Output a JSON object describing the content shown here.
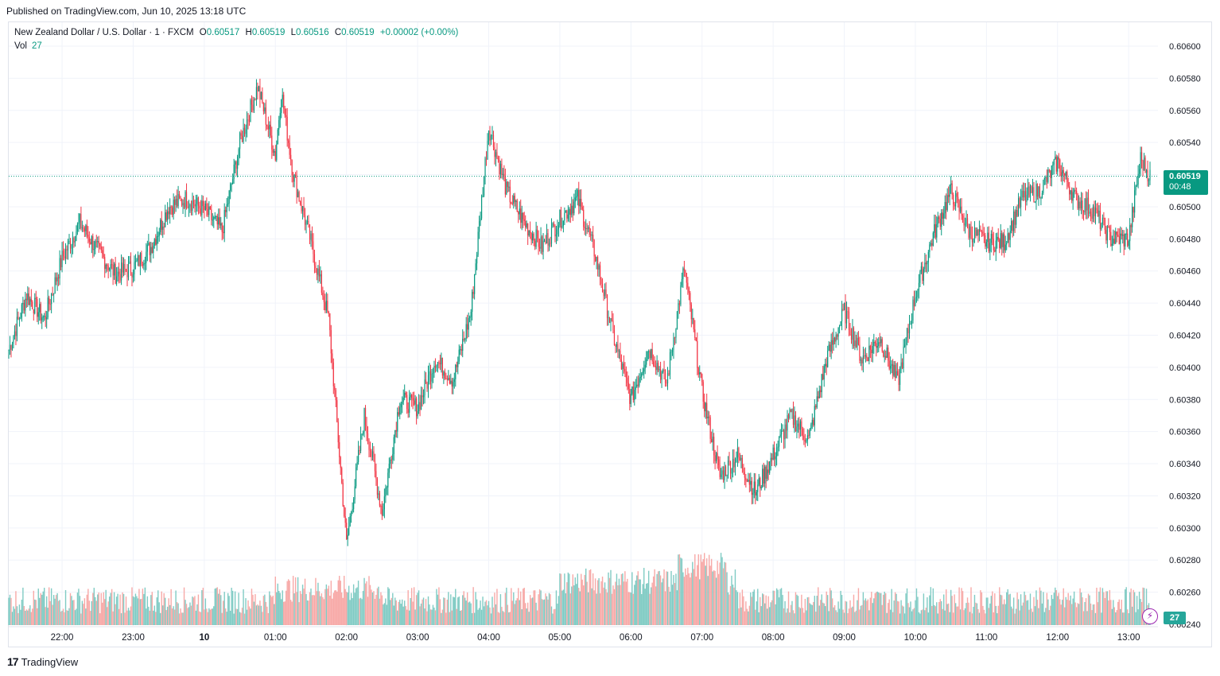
{
  "header": {
    "published": "Published on TradingView.com, Jun 10, 2025 13:18 UTC"
  },
  "legend": {
    "symbol": "New Zealand Dollar / U.S. Dollar · 1 · FXCM",
    "o_label": "O",
    "o_value": "0.60517",
    "h_label": "H",
    "h_value": "0.60519",
    "l_label": "L",
    "l_value": "0.60516",
    "c_label": "C",
    "c_value": "0.60519",
    "change": "+0.00002 (+0.00%)",
    "vol_label": "Vol",
    "vol_value": "27"
  },
  "price_tag": {
    "price": "0.60519",
    "countdown": "00:48"
  },
  "volume_tag": "27",
  "footer": {
    "brand": "TradingView",
    "logo_text": "17"
  },
  "colors": {
    "up": "#089981",
    "down": "#f23645",
    "up_volume": "#80cbc4",
    "down_volume": "#f7a9a7",
    "grid": "#f0f3fa"
  },
  "chart_data": {
    "type": "candlestick",
    "symbol": "NZD/USD",
    "interval": "1",
    "ylim": [
      0.6024,
      0.606
    ],
    "y_ticks": [
      "0.60600",
      "0.60580",
      "0.60560",
      "0.60540",
      "0.60520",
      "0.60500",
      "0.60480",
      "0.60460",
      "0.60440",
      "0.60420",
      "0.60400",
      "0.60380",
      "0.60360",
      "0.60340",
      "0.60320",
      "0.60300",
      "0.60280",
      "0.60260",
      "0.60240"
    ],
    "x_ticks": [
      "22:00",
      "23:00",
      "10",
      "01:00",
      "02:00",
      "03:00",
      "04:00",
      "05:00",
      "06:00",
      "07:00",
      "08:00",
      "09:00",
      "10:00",
      "11:00",
      "12:00",
      "13:00"
    ],
    "last_price": 0.60519,
    "price_path": [
      [
        "21:15",
        0.60411
      ],
      [
        "21:30",
        0.60445
      ],
      [
        "21:45",
        0.6043
      ],
      [
        "22:00",
        0.60468
      ],
      [
        "22:15",
        0.6049
      ],
      [
        "22:30",
        0.60473
      ],
      [
        "22:45",
        0.60458
      ],
      [
        "23:00",
        0.60462
      ],
      [
        "23:15",
        0.60475
      ],
      [
        "23:30",
        0.605
      ],
      [
        "23:45",
        0.60505
      ],
      [
        "00:00",
        0.60498
      ],
      [
        "00:15",
        0.60485
      ],
      [
        "00:30",
        0.6054
      ],
      [
        "00:45",
        0.60575
      ],
      [
        "01:00",
        0.60532
      ],
      [
        "01:05",
        0.60572
      ],
      [
        "01:15",
        0.6052
      ],
      [
        "01:30",
        0.60478
      ],
      [
        "01:45",
        0.6043
      ],
      [
        "02:00",
        0.6029
      ],
      [
        "02:15",
        0.6037
      ],
      [
        "02:30",
        0.6031
      ],
      [
        "02:45",
        0.6038
      ],
      [
        "03:00",
        0.60375
      ],
      [
        "03:15",
        0.60405
      ],
      [
        "03:30",
        0.60392
      ],
      [
        "03:45",
        0.60435
      ],
      [
        "04:00",
        0.6055
      ],
      [
        "04:15",
        0.6051
      ],
      [
        "04:30",
        0.6049
      ],
      [
        "04:45",
        0.60475
      ],
      [
        "05:00",
        0.60492
      ],
      [
        "05:15",
        0.60505
      ],
      [
        "05:30",
        0.6047
      ],
      [
        "05:45",
        0.6042
      ],
      [
        "06:00",
        0.6038
      ],
      [
        "06:15",
        0.60412
      ],
      [
        "06:30",
        0.6039
      ],
      [
        "06:45",
        0.60462
      ],
      [
        "07:00",
        0.60385
      ],
      [
        "07:15",
        0.60332
      ],
      [
        "07:30",
        0.60345
      ],
      [
        "07:45",
        0.60322
      ],
      [
        "08:00",
        0.60345
      ],
      [
        "08:15",
        0.6037
      ],
      [
        "08:30",
        0.60355
      ],
      [
        "08:45",
        0.60405
      ],
      [
        "09:00",
        0.60435
      ],
      [
        "09:15",
        0.60405
      ],
      [
        "09:30",
        0.60418
      ],
      [
        "09:45",
        0.6039
      ],
      [
        "10:00",
        0.60445
      ],
      [
        "10:15",
        0.60482
      ],
      [
        "10:30",
        0.6051
      ],
      [
        "10:45",
        0.60485
      ],
      [
        "11:00",
        0.60478
      ],
      [
        "11:15",
        0.60478
      ],
      [
        "11:30",
        0.60505
      ],
      [
        "11:45",
        0.6051
      ],
      [
        "12:00",
        0.60528
      ],
      [
        "12:15",
        0.60505
      ],
      [
        "12:30",
        0.60498
      ],
      [
        "12:45",
        0.6048
      ],
      [
        "13:00",
        0.6048
      ],
      [
        "13:10",
        0.6053
      ],
      [
        "13:18",
        0.60519
      ]
    ],
    "volume_range": [
      0,
      60
    ]
  }
}
